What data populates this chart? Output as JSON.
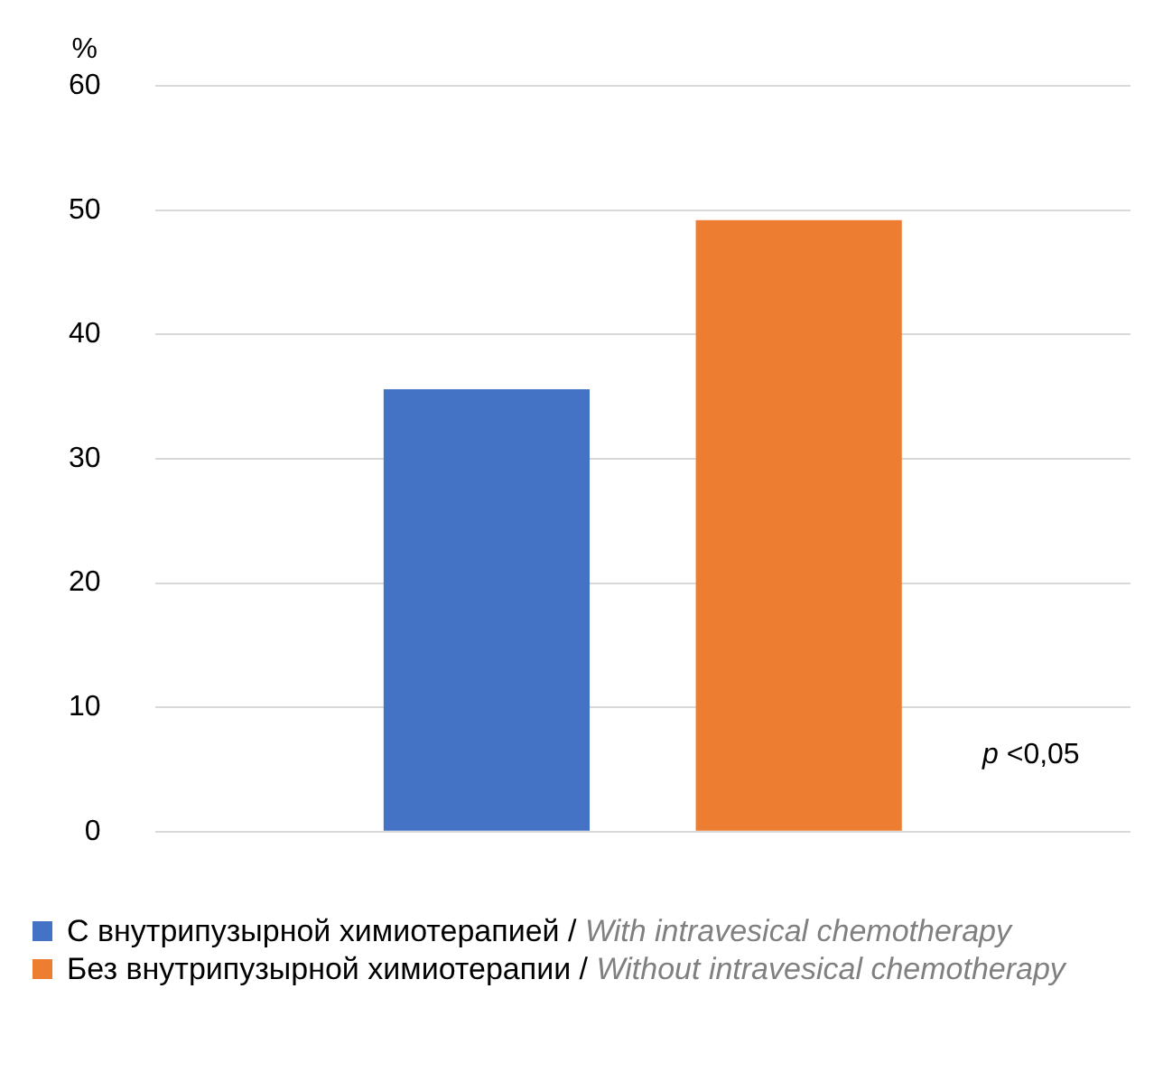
{
  "chart_data": {
    "type": "bar",
    "ylabel": "%",
    "categories": [
      null
    ],
    "series": [
      {
        "name": "С внутрипузырной химиотерапией / With intravesical chemotherapy",
        "color": "#4472c4",
        "values": [
          35.6
        ]
      },
      {
        "name": "Без внутрипузырной химиотерапии / Without intravesical chemotherapy",
        "color": "#ed7d31",
        "values": [
          49.2
        ]
      }
    ],
    "ylim": [
      0,
      60
    ],
    "yticks": [
      0,
      10,
      20,
      30,
      40,
      50,
      60
    ],
    "grid": "y",
    "legend": "bottom",
    "annotations": [
      "p <0,05"
    ]
  }
}
